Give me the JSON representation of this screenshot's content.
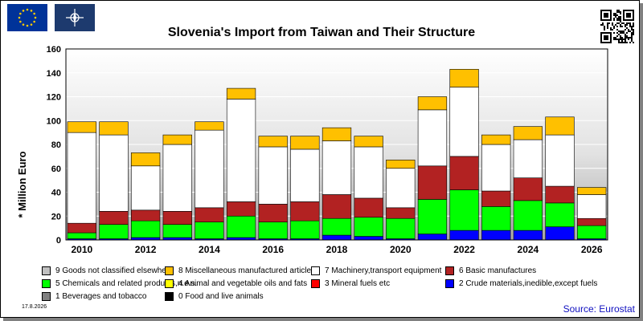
{
  "header": {
    "title": "Slovenia's Import from Taiwan and Their Structure",
    "date": "17.8.2026",
    "source": "Source: Eurostat"
  },
  "icons": {
    "left_flag": "eu-flag-icon",
    "second_flag": "nato-flag-icon",
    "qr": "qr-code-icon"
  },
  "chart_data": {
    "type": "bar",
    "stacked": true,
    "ylabel": "* Million Euro",
    "ylim": [
      0,
      160
    ],
    "yticks": [
      0,
      20,
      40,
      60,
      80,
      100,
      120,
      140,
      160
    ],
    "grid": true,
    "categories": [
      "2010",
      "2011",
      "2012",
      "2013",
      "2014",
      "2015",
      "2016",
      "2017",
      "2018",
      "2019",
      "2020",
      "2021",
      "2022",
      "2023",
      "2024",
      "2025",
      "2026"
    ],
    "xtick_labels": [
      "2010",
      "",
      "2012",
      "",
      "2014",
      "",
      "2016",
      "",
      "2018",
      "",
      "2020",
      "",
      "2022",
      "",
      "2024",
      "",
      "2026"
    ],
    "legend_position": "bottom",
    "series": [
      {
        "name": "0 Food and live animals",
        "color": "#000000",
        "values": [
          0,
          0,
          0,
          0,
          0,
          0,
          0,
          0,
          0,
          0,
          0,
          0,
          0,
          0,
          0,
          0,
          0
        ]
      },
      {
        "name": "1 Beverages and tobacco",
        "color": "#808080",
        "values": [
          0,
          0,
          0,
          0,
          0,
          0,
          0,
          0,
          0,
          0,
          0,
          0,
          0,
          0,
          0,
          0,
          0
        ]
      },
      {
        "name": "2 Crude materials,inedible,except fuels",
        "color": "#0000ff",
        "values": [
          1,
          1,
          2,
          2,
          1,
          2,
          1,
          1,
          4,
          3,
          1,
          5,
          8,
          8,
          8,
          11,
          1
        ]
      },
      {
        "name": "3 Mineral fuels etc",
        "color": "#ff0000",
        "values": [
          0,
          0,
          0,
          0,
          0,
          0,
          0,
          0,
          0,
          0,
          0,
          0,
          0,
          0,
          0,
          0,
          0
        ]
      },
      {
        "name": "4 Animal and vegetable oils and fats",
        "color": "#ffff00",
        "values": [
          0,
          0,
          0,
          0,
          0,
          0,
          0,
          0,
          0,
          0,
          0,
          0,
          0,
          0,
          0,
          0,
          0
        ]
      },
      {
        "name": "5 Chemicals and related products,n.e.s.",
        "color": "#00ff00",
        "values": [
          5,
          12,
          14,
          11,
          14,
          18,
          14,
          15,
          14,
          16,
          17,
          29,
          34,
          20,
          25,
          20,
          11
        ]
      },
      {
        "name": "6 Basic manufactures",
        "color": "#b22222",
        "values": [
          8,
          11,
          9,
          11,
          12,
          12,
          15,
          16,
          20,
          16,
          9,
          28,
          28,
          13,
          19,
          14,
          6
        ]
      },
      {
        "name": "7 Machinery,transport equipment",
        "color": "#ffffff",
        "values": [
          76,
          64,
          37,
          56,
          65,
          86,
          48,
          44,
          45,
          43,
          33,
          47,
          58,
          39,
          32,
          43,
          20
        ]
      },
      {
        "name": "8 Miscellaneous manufactured articles",
        "color": "#ffc000",
        "values": [
          9,
          11,
          11,
          8,
          7,
          9,
          9,
          11,
          11,
          9,
          7,
          11,
          15,
          8,
          11,
          15,
          6
        ]
      },
      {
        "name": "9 Goods not classified elsewhere",
        "color": "#c0c0c0",
        "values": [
          0,
          0,
          0,
          0,
          0,
          0,
          0,
          0,
          0,
          0,
          0,
          0,
          0,
          0,
          0,
          0,
          0
        ]
      }
    ]
  },
  "legend": [
    {
      "label": "9 Goods not classified elsewhere",
      "color": "#c0c0c0"
    },
    {
      "label": "8 Miscellaneous manufactured articles",
      "color": "#ffc000"
    },
    {
      "label": "7 Machinery,transport equipment",
      "color": "#ffffff"
    },
    {
      "label": "6 Basic manufactures",
      "color": "#b22222"
    },
    {
      "label": "5 Chemicals and related products,n.e.s.",
      "color": "#00ff00"
    },
    {
      "label": "4 Animal and vegetable oils and fats",
      "color": "#ffff00"
    },
    {
      "label": "3 Mineral fuels etc",
      "color": "#ff0000"
    },
    {
      "label": "2 Crude materials,inedible,except fuels",
      "color": "#0000ff"
    },
    {
      "label": "1 Beverages and tobacco",
      "color": "#808080"
    },
    {
      "label": "0 Food and live animals",
      "color": "#000000"
    }
  ]
}
